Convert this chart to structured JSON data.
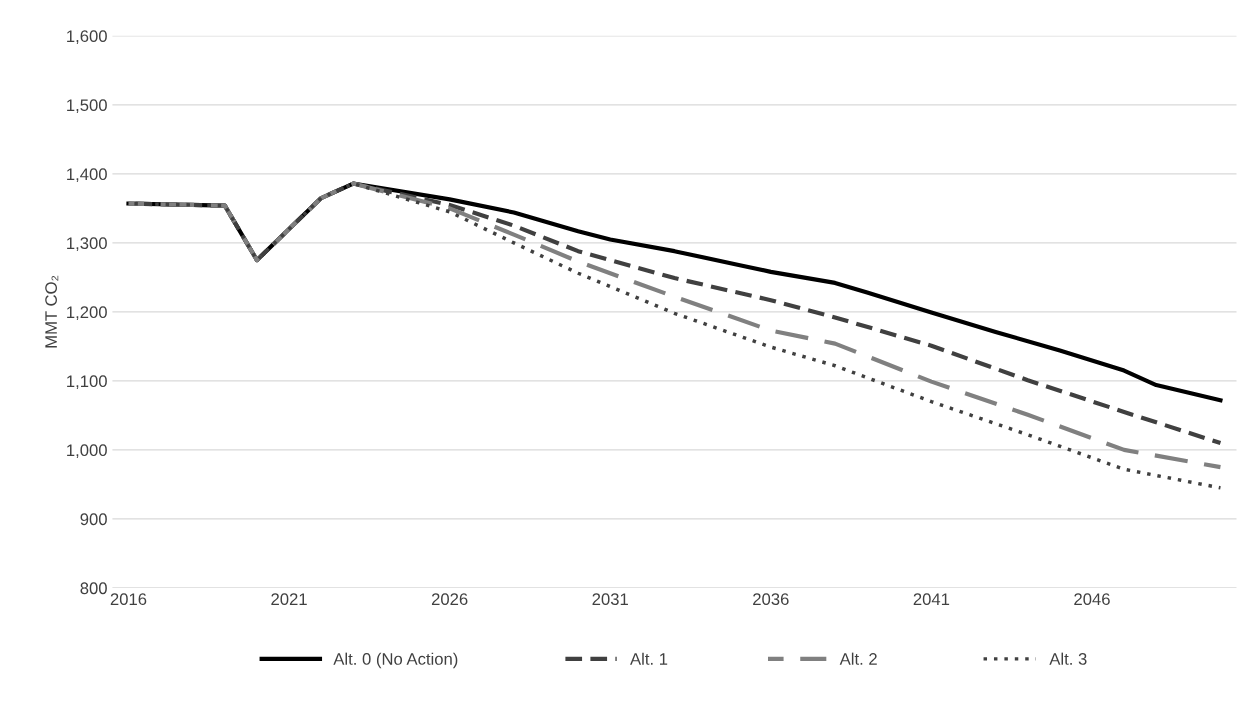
{
  "chart_data": {
    "type": "line",
    "ylabel": "MMT CO₂",
    "xlim": [
      2015.5,
      2050.5
    ],
    "xticks": [
      2016,
      2021,
      2026,
      2031,
      2036,
      2041,
      2046
    ],
    "ylim": [
      800,
      1600
    ],
    "yticks": [
      {
        "value": 800,
        "label": "800"
      },
      {
        "value": 900,
        "label": "900"
      },
      {
        "value": 1000,
        "label": "1,000"
      },
      {
        "value": 1100,
        "label": "1,100"
      },
      {
        "value": 1200,
        "label": "1,200"
      },
      {
        "value": 1300,
        "label": "1,300"
      },
      {
        "value": 1400,
        "label": "1,400"
      },
      {
        "value": 1500,
        "label": "1,500"
      },
      {
        "value": 1600,
        "label": "1,600"
      }
    ],
    "grid": "y",
    "legend": "bottom",
    "series": [
      {
        "name": "Alt. 0 (No Action)",
        "color": "#000000",
        "line_style": "solid",
        "x": [
          2016,
          2019,
          2020,
          2021,
          2022,
          2023,
          2026,
          2028,
          2030,
          2031,
          2033,
          2035,
          2036,
          2038,
          2039,
          2041,
          2043,
          2045,
          2047,
          2048,
          2050
        ],
        "values": [
          1357,
          1354,
          1275,
          1320,
          1365,
          1386,
          1363,
          1344,
          1317,
          1305,
          1288,
          1268,
          1258,
          1242,
          1228,
          1199,
          1171,
          1144,
          1115,
          1094,
          1072
        ]
      },
      {
        "name": "Alt. 1",
        "color": "#404040",
        "line_style": "dashed",
        "x": [
          2016,
          2019,
          2020,
          2021,
          2022,
          2023,
          2026,
          2028,
          2030,
          2033,
          2036,
          2038,
          2041,
          2044,
          2047,
          2050
        ],
        "values": [
          1357,
          1354,
          1275,
          1320,
          1365,
          1386,
          1355,
          1325,
          1288,
          1249,
          1217,
          1192,
          1151,
          1101,
          1055,
          1010
        ]
      },
      {
        "name": "Alt. 2",
        "color": "#808080",
        "line_style": "dashed",
        "x": [
          2016,
          2019,
          2020,
          2021,
          2022,
          2023,
          2026,
          2028,
          2030,
          2033,
          2036,
          2038,
          2041,
          2044,
          2047,
          2050
        ],
        "values": [
          1357,
          1354,
          1275,
          1320,
          1365,
          1386,
          1350,
          1312,
          1273,
          1222,
          1173,
          1154,
          1099,
          1051,
          1000,
          975
        ]
      },
      {
        "name": "Alt. 3",
        "color": "#404040",
        "line_style": "dotted",
        "x": [
          2016,
          2019,
          2020,
          2021,
          2022,
          2023,
          2026,
          2028,
          2030,
          2033,
          2036,
          2038,
          2041,
          2044,
          2047,
          2050
        ],
        "values": [
          1357,
          1354,
          1275,
          1320,
          1365,
          1386,
          1345,
          1300,
          1256,
          1198,
          1149,
          1122,
          1070,
          1022,
          972,
          945
        ]
      }
    ]
  }
}
